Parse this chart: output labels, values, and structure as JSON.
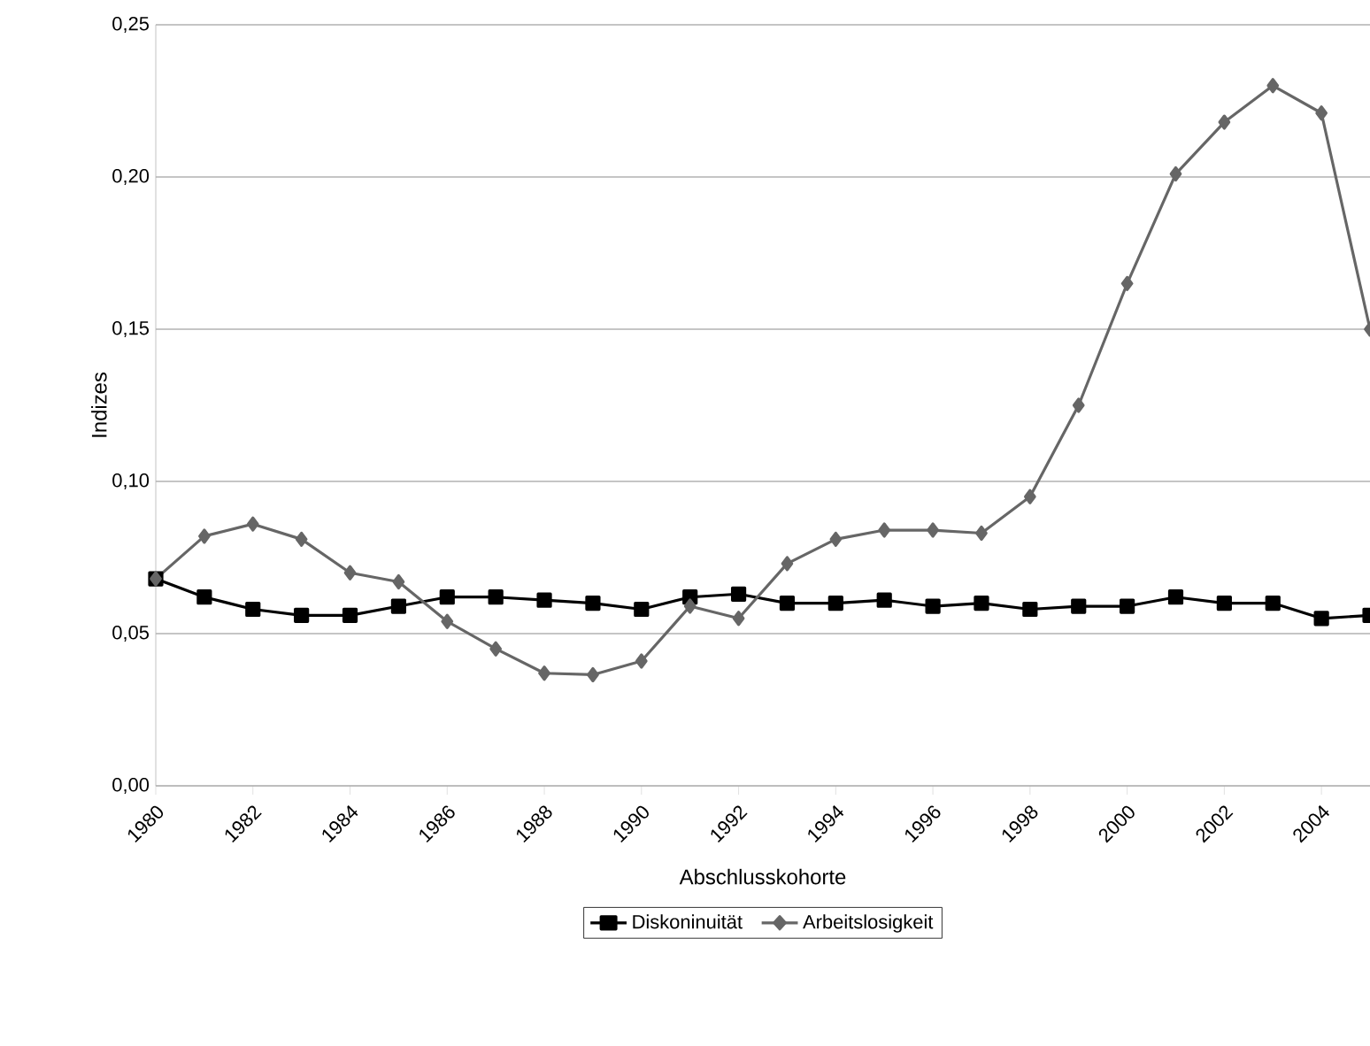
{
  "chart_data": {
    "type": "line",
    "xlabel": "Abschlusskohorte",
    "ylabel": "Indizes",
    "x": [
      1980,
      1981,
      1982,
      1983,
      1984,
      1985,
      1986,
      1987,
      1988,
      1989,
      1990,
      1991,
      1992,
      1993,
      1994,
      1995,
      1996,
      1997,
      1998,
      1999,
      2000,
      2001,
      2002,
      2003,
      2004,
      2005
    ],
    "series": [
      {
        "name": "Diskoninuität",
        "color": "#000000",
        "marker": "square",
        "values": [
          0.068,
          0.062,
          0.058,
          0.056,
          0.056,
          0.059,
          0.062,
          0.062,
          0.061,
          0.06,
          0.058,
          0.062,
          0.063,
          0.06,
          0.06,
          0.061,
          0.059,
          0.06,
          0.058,
          0.059,
          0.059,
          0.062,
          0.06,
          0.06,
          0.055,
          0.056
        ]
      },
      {
        "name": "Arbeitslosigkeit",
        "color": "#666666",
        "marker": "diamond",
        "values": [
          0.068,
          0.082,
          0.086,
          0.081,
          0.07,
          0.067,
          0.054,
          0.045,
          0.037,
          0.0365,
          0.041,
          0.059,
          0.055,
          0.073,
          0.081,
          0.084,
          0.084,
          0.083,
          0.095,
          0.125,
          0.165,
          0.201,
          0.218,
          0.23,
          0.221,
          0.15
        ]
      }
    ],
    "xlim": [
      1980,
      2005
    ],
    "xticks": [
      1980,
      1982,
      1984,
      1986,
      1988,
      1990,
      1992,
      1994,
      1996,
      1998,
      2000,
      2002,
      2004
    ],
    "ylim": [
      0,
      0.25
    ],
    "yticks": [
      {
        "value": 0,
        "label": "0,00"
      },
      {
        "value": 0.05,
        "label": "0,05"
      },
      {
        "value": 0.1,
        "label": "0,10"
      },
      {
        "value": 0.15,
        "label": "0,15"
      },
      {
        "value": 0.2,
        "label": "0,20"
      },
      {
        "value": 0.25,
        "label": "0,25"
      }
    ],
    "grid": "y",
    "legend": "bottom",
    "line_style": "solid"
  }
}
